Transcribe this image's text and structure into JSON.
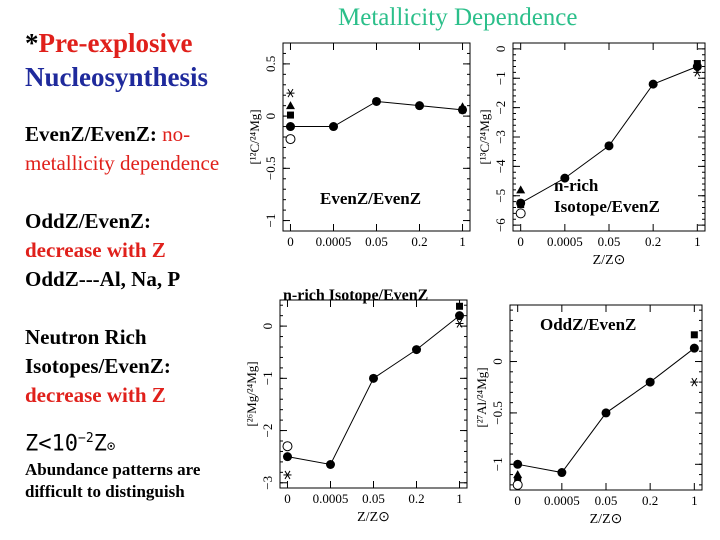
{
  "slide": {
    "title": "Metallicity Dependence",
    "heading_star": "*",
    "heading_line1": "Pre-explosive",
    "heading_line2": "Nucleosynthesis",
    "evenz_label": "EvenZ/EvenZ:",
    "evenz_text1": " no-",
    "evenz_text2": "metallicity dependence",
    "oddz_label": "OddZ/EvenZ:",
    "oddz_text": "decrease with Z",
    "oddz_elements": "OddZ---Al, Na, P",
    "neutron_line1": "Neutron Rich",
    "neutron_line2": "Isotopes/EvenZ:",
    "neutron_text": "decrease with Z",
    "z_prefix": "Z",
    "z_mid": "<10",
    "z_exp": "−2",
    "z_suffix": "Z",
    "z_sun": "⊙",
    "note_line1": "Abundance patterns are",
    "note_line2": "difficult to distinguish"
  },
  "chart_data": [
    {
      "type": "line",
      "panel": "top-left",
      "annotation": "EvenZ/EvenZ",
      "ylabel": "[¹²C/²⁴Mg]",
      "xlabel": "",
      "categories": [
        "0",
        "0.0005",
        "0.05",
        "0.2",
        "1"
      ],
      "values": [
        -0.1,
        -0.1,
        0.14,
        0.1,
        0.06
      ],
      "ylim": [
        -1.1,
        0.7
      ],
      "yticks": [
        -1,
        -0.5,
        0,
        0.5
      ],
      "ytick_labels": [
        "−1",
        "−0.5",
        "0",
        "0.5"
      ],
      "extra_markers": [
        {
          "cat": 0,
          "y": 0.22,
          "shape": "asterisk"
        },
        {
          "cat": 0,
          "y": 0.1,
          "shape": "triangle"
        },
        {
          "cat": 0,
          "y": 0.01,
          "shape": "square"
        },
        {
          "cat": 0,
          "y": -0.22,
          "shape": "open-circle"
        },
        {
          "cat": 4,
          "y": 0.09,
          "shape": "triangle"
        },
        {
          "cat": 4,
          "y": 0.06,
          "shape": "square"
        }
      ]
    },
    {
      "type": "line",
      "panel": "top-right",
      "annotation": "n-rich\nIsotope/EvenZ",
      "ylabel": "[¹³C/²⁴Mg]",
      "xlabel": "Z/Z⊙",
      "categories": [
        "0",
        "0.0005",
        "0.05",
        "0.2",
        "1"
      ],
      "values": [
        -5.25,
        -4.4,
        -3.3,
        -1.2,
        -0.6
      ],
      "ylim": [
        -6.2,
        0.2
      ],
      "yticks": [
        -6,
        -5,
        -4,
        -3,
        -2,
        -1,
        0
      ],
      "ytick_labels": [
        "−6",
        "−5",
        "−4",
        "−3",
        "−2",
        "−1",
        "0"
      ],
      "extra_markers": [
        {
          "cat": 0,
          "y": -4.8,
          "shape": "triangle"
        },
        {
          "cat": 0,
          "y": -5.3,
          "shape": "square"
        },
        {
          "cat": 0,
          "y": -5.6,
          "shape": "open-circle"
        },
        {
          "cat": 4,
          "y": -0.5,
          "shape": "square"
        },
        {
          "cat": 4,
          "y": -0.8,
          "shape": "asterisk"
        }
      ]
    },
    {
      "type": "line",
      "panel": "bottom-left",
      "annotation": "n-rich Isotope/EvenZ",
      "ylabel": "[²⁶Mg/²⁴Mg]",
      "xlabel": "Z/Z⊙",
      "categories": [
        "0",
        "0.0005",
        "0.05",
        "0.2",
        "1"
      ],
      "values": [
        -2.5,
        -2.65,
        -1.0,
        -0.45,
        0.2
      ],
      "ylim": [
        -3.1,
        0.5
      ],
      "yticks": [
        -3,
        -2,
        -1,
        0
      ],
      "ytick_labels": [
        "−3",
        "−2",
        "−1",
        "0"
      ],
      "extra_markers": [
        {
          "cat": 0,
          "y": -2.3,
          "shape": "open-circle"
        },
        {
          "cat": 0,
          "y": -2.85,
          "shape": "asterisk"
        },
        {
          "cat": 4,
          "y": 0.38,
          "shape": "square"
        },
        {
          "cat": 4,
          "y": 0.05,
          "shape": "asterisk"
        }
      ]
    },
    {
      "type": "line",
      "panel": "bottom-right",
      "annotation": "OddZ/EvenZ",
      "ylabel": "[²⁷Al/²⁴Mg]",
      "xlabel": "Z/Z⊙",
      "categories": [
        "0",
        "0.0005",
        "0.05",
        "0.2",
        "1"
      ],
      "values": [
        -1.0,
        -1.08,
        -0.5,
        -0.2,
        0.13
      ],
      "ylim": [
        -1.25,
        0.55
      ],
      "yticks": [
        -1,
        -0.5,
        0
      ],
      "ytick_labels": [
        "−1",
        "−0.5",
        "0"
      ],
      "extra_markers": [
        {
          "cat": 0,
          "y": -1.1,
          "shape": "triangle"
        },
        {
          "cat": 0,
          "y": -1.15,
          "shape": "square"
        },
        {
          "cat": 0,
          "y": -1.2,
          "shape": "open-circle"
        },
        {
          "cat": 4,
          "y": 0.26,
          "shape": "square"
        },
        {
          "cat": 4,
          "y": -0.2,
          "shape": "asterisk"
        }
      ]
    }
  ]
}
